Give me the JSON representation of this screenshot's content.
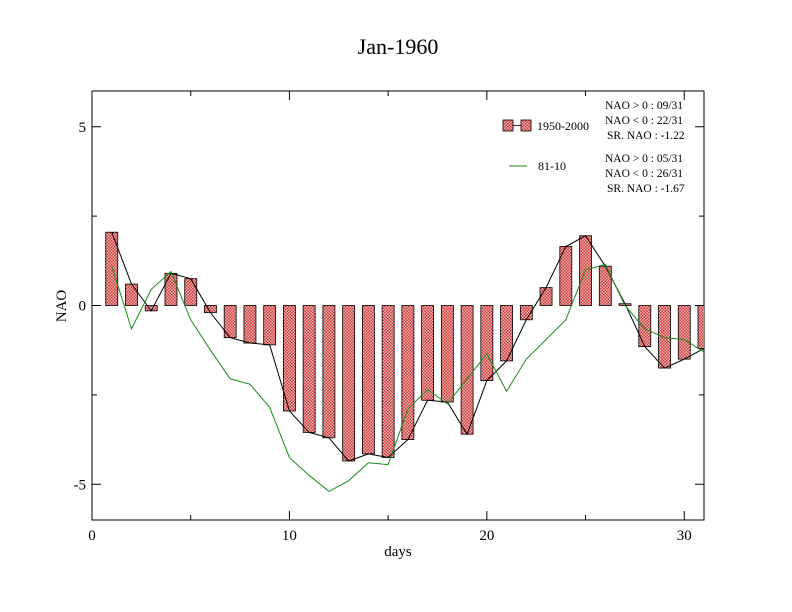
{
  "chart_data": {
    "type": "bar",
    "title": "Jan-1960",
    "xlabel": "days",
    "ylabel": "NAO",
    "xlim": [
      0,
      31
    ],
    "ylim": [
      -6,
      6
    ],
    "x_ticks": [
      "0",
      "10",
      "20",
      "30"
    ],
    "y_ticks": [
      "-5",
      "0",
      "5"
    ],
    "days": [
      1,
      2,
      3,
      4,
      5,
      6,
      7,
      8,
      9,
      10,
      11,
      12,
      13,
      14,
      15,
      16,
      17,
      18,
      19,
      20,
      21,
      22,
      23,
      24,
      25,
      26,
      27,
      28,
      29,
      30,
      31
    ],
    "series": [
      {
        "name": "1950-2000",
        "kind": "bar+line",
        "color": "#e06060",
        "values": [
          2.05,
          0.6,
          -0.15,
          0.9,
          0.75,
          -0.2,
          -0.9,
          -1.05,
          -1.1,
          -2.95,
          -3.55,
          -3.7,
          -4.35,
          -4.15,
          -4.25,
          -3.75,
          -2.65,
          -2.7,
          -3.6,
          -2.1,
          -1.55,
          -0.4,
          0.5,
          1.65,
          1.95,
          1.1,
          0.05,
          -1.15,
          -1.75,
          -1.5,
          -1.2
        ]
      },
      {
        "name": "81-10",
        "kind": "line",
        "color": "#1a8a1a",
        "values": [
          1.1,
          -0.65,
          0.45,
          0.95,
          -0.4,
          -1.25,
          -2.05,
          -2.2,
          -2.85,
          -4.25,
          -4.75,
          -5.2,
          -4.9,
          -4.4,
          -4.45,
          -2.9,
          -2.35,
          -2.75,
          -2.05,
          -1.35,
          -2.4,
          -1.5,
          -0.95,
          -0.4,
          1.0,
          1.15,
          0.0,
          -0.65,
          -0.9,
          -0.95,
          -1.3
        ]
      }
    ],
    "legend_position": "top-right",
    "stats": {
      "group1": [
        "NAO > 0 : 09/31",
        "NAO < 0 : 22/31",
        "SR. NAO : -1.22"
      ],
      "group2": [
        "NAO > 0 : 05/31",
        "NAO < 0 : 26/31",
        "SR. NAO : -1.67"
      ]
    },
    "grid": false
  }
}
